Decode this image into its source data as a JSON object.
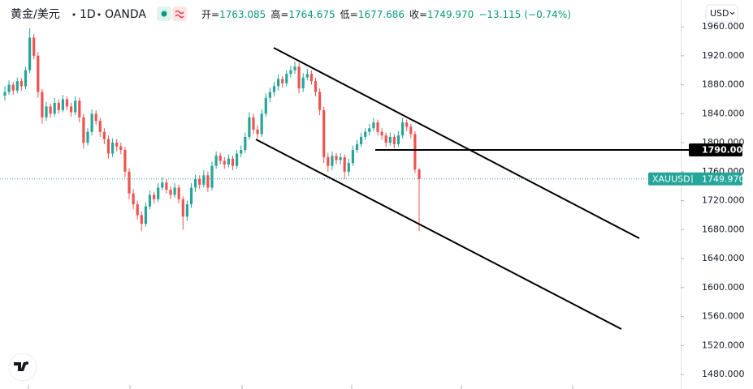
{
  "header": {
    "symbol": "黄金/美元",
    "interval": "1D",
    "exchange": "OANDA",
    "ohlc_legend": [
      {
        "label": "开=",
        "value": "1763.085"
      },
      {
        "label": "高=",
        "value": "1764.675"
      },
      {
        "label": "低=",
        "value": "1677.686"
      },
      {
        "label": "收=",
        "value": "1749.970"
      }
    ],
    "change": "−13.115",
    "change_percent": "(−0.74%)"
  },
  "currency": "USD",
  "chart_data": {
    "type": "candlestick",
    "up_color": "#26a69a",
    "down_color": "#ef5350",
    "ylim": [
      1460,
      1997
    ],
    "yticks": [
      {
        "value": 1960,
        "label": "1960.000"
      },
      {
        "value": 1920,
        "label": "1920.000"
      },
      {
        "value": 1880,
        "label": "1880.000"
      },
      {
        "value": 1840,
        "label": "1840.000"
      },
      {
        "value": 1800,
        "label": "1800.000"
      },
      {
        "value": 1760,
        "label": "1760.000"
      },
      {
        "value": 1720,
        "label": "1720.000"
      },
      {
        "value": 1680,
        "label": "1680.000"
      },
      {
        "value": 1640,
        "label": "1640.000"
      },
      {
        "value": 1600,
        "label": "1600.000"
      },
      {
        "value": 1560,
        "label": "1560.000"
      },
      {
        "value": 1520,
        "label": "1520.000"
      },
      {
        "value": 1480,
        "label": "1480.000"
      }
    ],
    "hline": {
      "value": 1790,
      "label": "1790.000"
    },
    "last_price": {
      "symbol": "XAUUSD",
      "value": 1749.97,
      "label": "1749.970"
    },
    "ohlc": [
      [
        1865,
        1878,
        1858,
        1870
      ],
      [
        1870,
        1886,
        1866,
        1880
      ],
      [
        1880,
        1884,
        1866,
        1872
      ],
      [
        1872,
        1890,
        1868,
        1885
      ],
      [
        1885,
        1889,
        1872,
        1878
      ],
      [
        1878,
        1905,
        1874,
        1900
      ],
      [
        1900,
        1958,
        1896,
        1945
      ],
      [
        1945,
        1950,
        1915,
        1920
      ],
      [
        1920,
        1925,
        1862,
        1870
      ],
      [
        1870,
        1874,
        1826,
        1835
      ],
      [
        1835,
        1856,
        1830,
        1850
      ],
      [
        1850,
        1854,
        1834,
        1840
      ],
      [
        1840,
        1862,
        1836,
        1855
      ],
      [
        1855,
        1860,
        1840,
        1845
      ],
      [
        1845,
        1866,
        1842,
        1860
      ],
      [
        1860,
        1864,
        1845,
        1850
      ],
      [
        1850,
        1855,
        1836,
        1842
      ],
      [
        1842,
        1864,
        1838,
        1858
      ],
      [
        1858,
        1862,
        1828,
        1835
      ],
      [
        1835,
        1840,
        1792,
        1800
      ],
      [
        1800,
        1820,
        1796,
        1815
      ],
      [
        1815,
        1846,
        1810,
        1840
      ],
      [
        1840,
        1845,
        1825,
        1830
      ],
      [
        1830,
        1834,
        1808,
        1815
      ],
      [
        1815,
        1820,
        1798,
        1805
      ],
      [
        1805,
        1810,
        1778,
        1785
      ],
      [
        1785,
        1806,
        1780,
        1800
      ],
      [
        1800,
        1805,
        1788,
        1795
      ],
      [
        1795,
        1800,
        1784,
        1790
      ],
      [
        1790,
        1794,
        1752,
        1760
      ],
      [
        1760,
        1765,
        1722,
        1730
      ],
      [
        1730,
        1736,
        1708,
        1715
      ],
      [
        1715,
        1720,
        1694,
        1700
      ],
      [
        1700,
        1705,
        1678,
        1688
      ],
      [
        1688,
        1718,
        1684,
        1712
      ],
      [
        1712,
        1734,
        1708,
        1728
      ],
      [
        1728,
        1732,
        1716,
        1722
      ],
      [
        1722,
        1744,
        1718,
        1738
      ],
      [
        1738,
        1752,
        1734,
        1745
      ],
      [
        1745,
        1750,
        1730,
        1735
      ],
      [
        1735,
        1740,
        1722,
        1728
      ],
      [
        1728,
        1744,
        1724,
        1738
      ],
      [
        1738,
        1742,
        1716,
        1722
      ],
      [
        1722,
        1726,
        1680,
        1698
      ],
      [
        1698,
        1720,
        1692,
        1715
      ],
      [
        1715,
        1744,
        1710,
        1738
      ],
      [
        1738,
        1756,
        1732,
        1750
      ],
      [
        1750,
        1755,
        1736,
        1742
      ],
      [
        1742,
        1762,
        1738,
        1755
      ],
      [
        1755,
        1760,
        1732,
        1738
      ],
      [
        1738,
        1774,
        1734,
        1768
      ],
      [
        1768,
        1788,
        1764,
        1782
      ],
      [
        1782,
        1786,
        1770,
        1775
      ],
      [
        1775,
        1780,
        1764,
        1770
      ],
      [
        1770,
        1784,
        1766,
        1778
      ],
      [
        1778,
        1782,
        1762,
        1768
      ],
      [
        1768,
        1790,
        1764,
        1785
      ],
      [
        1785,
        1796,
        1780,
        1790
      ],
      [
        1790,
        1814,
        1786,
        1808
      ],
      [
        1808,
        1842,
        1804,
        1835
      ],
      [
        1835,
        1840,
        1812,
        1818
      ],
      [
        1818,
        1824,
        1806,
        1812
      ],
      [
        1812,
        1846,
        1808,
        1840
      ],
      [
        1840,
        1868,
        1836,
        1862
      ],
      [
        1862,
        1876,
        1856,
        1870
      ],
      [
        1870,
        1884,
        1864,
        1878
      ],
      [
        1878,
        1894,
        1872,
        1888
      ],
      [
        1888,
        1892,
        1876,
        1882
      ],
      [
        1882,
        1900,
        1878,
        1895
      ],
      [
        1895,
        1906,
        1890,
        1900
      ],
      [
        1900,
        1912,
        1895,
        1905
      ],
      [
        1905,
        1910,
        1868,
        1875
      ],
      [
        1875,
        1896,
        1870,
        1890
      ],
      [
        1890,
        1902,
        1886,
        1895
      ],
      [
        1895,
        1900,
        1880,
        1885
      ],
      [
        1885,
        1890,
        1864,
        1870
      ],
      [
        1870,
        1875,
        1838,
        1845
      ],
      [
        1845,
        1850,
        1772,
        1780
      ],
      [
        1780,
        1786,
        1760,
        1768
      ],
      [
        1768,
        1788,
        1762,
        1782
      ],
      [
        1782,
        1786,
        1770,
        1776
      ],
      [
        1776,
        1786,
        1770,
        1780
      ],
      [
        1780,
        1784,
        1750,
        1760
      ],
      [
        1760,
        1778,
        1754,
        1772
      ],
      [
        1772,
        1796,
        1768,
        1790
      ],
      [
        1790,
        1804,
        1786,
        1798
      ],
      [
        1798,
        1814,
        1794,
        1808
      ],
      [
        1808,
        1820,
        1804,
        1815
      ],
      [
        1815,
        1826,
        1810,
        1820
      ],
      [
        1820,
        1834,
        1816,
        1828
      ],
      [
        1828,
        1832,
        1810,
        1815
      ],
      [
        1815,
        1820,
        1804,
        1810
      ],
      [
        1810,
        1814,
        1794,
        1800
      ],
      [
        1800,
        1814,
        1796,
        1808
      ],
      [
        1808,
        1812,
        1792,
        1798
      ],
      [
        1798,
        1816,
        1794,
        1810
      ],
      [
        1810,
        1834,
        1806,
        1828
      ],
      [
        1828,
        1832,
        1816,
        1822
      ],
      [
        1822,
        1826,
        1806,
        1812
      ],
      [
        1812,
        1816,
        1758,
        1763.085
      ],
      [
        1763.085,
        1764.675,
        1677.686,
        1749.97
      ]
    ]
  }
}
